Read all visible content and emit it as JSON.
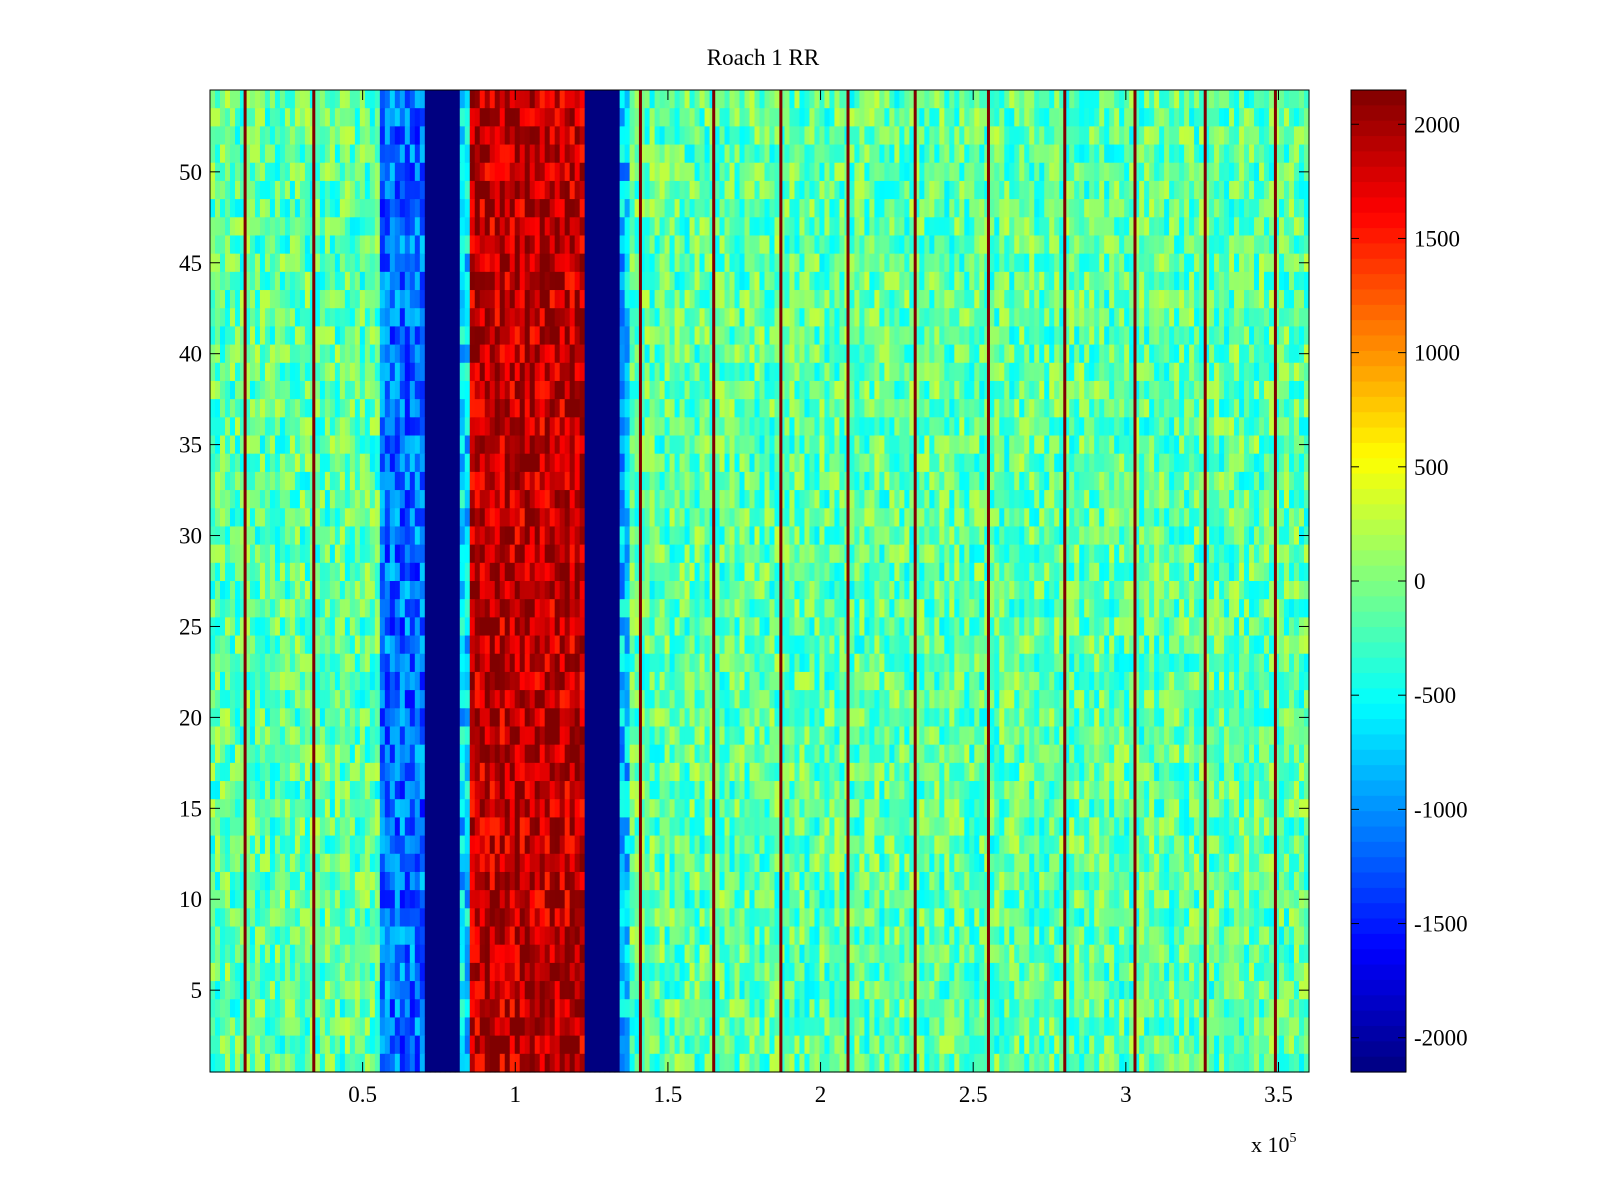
{
  "chart_data": {
    "type": "heatmap",
    "title": "Roach 1 RR",
    "xlabel": "",
    "ylabel": "",
    "x_multiplier_label": "x 10",
    "x_multiplier_exponent": "5",
    "xlim": [
      0,
      360000
    ],
    "ylim": [
      0.5,
      54.5
    ],
    "x_ticks": [
      50000,
      100000,
      150000,
      200000,
      250000,
      300000,
      350000
    ],
    "x_tick_labels": [
      "0.5",
      "1",
      "1.5",
      "2",
      "2.5",
      "3",
      "3.5"
    ],
    "y_ticks": [
      5,
      10,
      15,
      20,
      25,
      30,
      35,
      40,
      45,
      50
    ],
    "y_tick_labels": [
      "5",
      "10",
      "15",
      "20",
      "25",
      "30",
      "35",
      "40",
      "45",
      "50"
    ],
    "rows": 54,
    "colormap": "jet",
    "clim": [
      -2150,
      2150
    ],
    "colorbar": {
      "ticks": [
        2000,
        1500,
        1000,
        500,
        0,
        -500,
        -1000,
        -1500,
        -2000
      ],
      "tick_labels": [
        "2000",
        "1500",
        "1000",
        "500",
        "0",
        "-500",
        "-1000",
        "-1500",
        "-2000"
      ]
    },
    "background_level": -150,
    "column_bands": [
      {
        "x_start": 56000,
        "x_end": 70000,
        "level": -1150
      },
      {
        "x_start": 70000,
        "x_end": 82000,
        "level": -2150
      },
      {
        "x_start": 82000,
        "x_end": 85000,
        "level": -700
      },
      {
        "x_start": 85000,
        "x_end": 122000,
        "level": 1900
      },
      {
        "x_start": 122000,
        "x_end": 134000,
        "level": -2150
      },
      {
        "x_start": 134000,
        "x_end": 137000,
        "level": -800
      }
    ],
    "spike_lines_x": [
      11500,
      34000,
      141000,
      165000,
      187000,
      209000,
      231000,
      255000,
      280000,
      303000,
      326000,
      349000
    ],
    "spike_level": 2150
  }
}
